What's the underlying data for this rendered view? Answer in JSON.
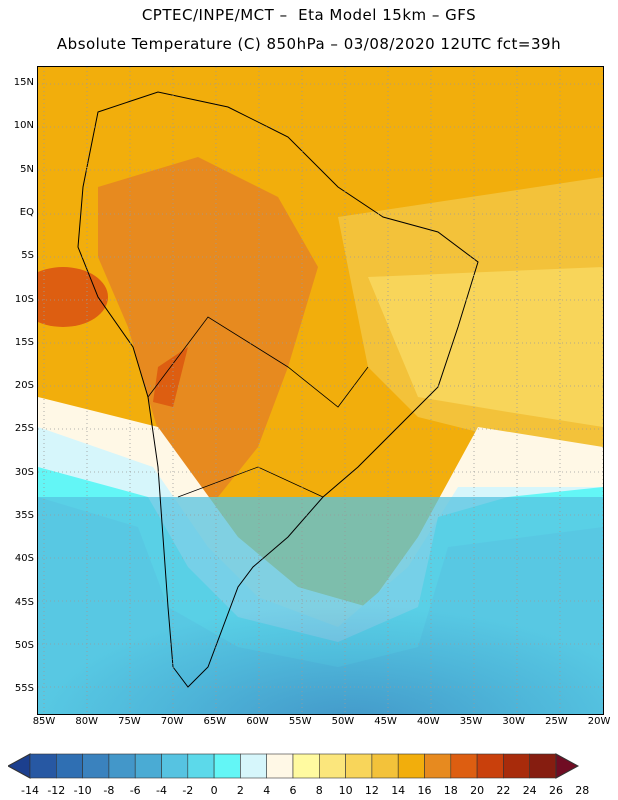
{
  "header": {
    "line1": "CPTEC/INPE/MCT –  Eta Model 15km – GFS",
    "line2": "Absolute Temperature (C) 850hPa – 03/08/2020 12UTC fct=39h"
  },
  "map": {
    "lat_labels": [
      "15N",
      "10N",
      "5N",
      "EQ",
      "5S",
      "10S",
      "15S",
      "20S",
      "25S",
      "30S",
      "35S",
      "40S",
      "45S",
      "50S",
      "55S"
    ],
    "lon_labels": [
      "85W",
      "80W",
      "75W",
      "70W",
      "65W",
      "60W",
      "55W",
      "50W",
      "45W",
      "40W",
      "35W",
      "30W",
      "25W",
      "20W"
    ]
  },
  "colorbar": {
    "labels": [
      "-14",
      "-12",
      "-10",
      "-8",
      "-6",
      "-4",
      "-2",
      "0",
      "2",
      "4",
      "6",
      "8",
      "10",
      "12",
      "14",
      "16",
      "18",
      "20",
      "22",
      "24",
      "26",
      "28"
    ],
    "colors": [
      "#1c3f8e",
      "#2758a3",
      "#2f6fb3",
      "#3a82be",
      "#4397c9",
      "#4aabd4",
      "#56c3e1",
      "#5cd9ea",
      "#63f6f6",
      "#d6f6fb",
      "#fff8e6",
      "#fffaa0",
      "#fbe67c",
      "#f8d55a",
      "#f3c23a",
      "#f2ae0c",
      "#e78a1f",
      "#dd5e11",
      "#c9400c",
      "#a82b0b",
      "#861d10",
      "#700c23"
    ]
  }
}
